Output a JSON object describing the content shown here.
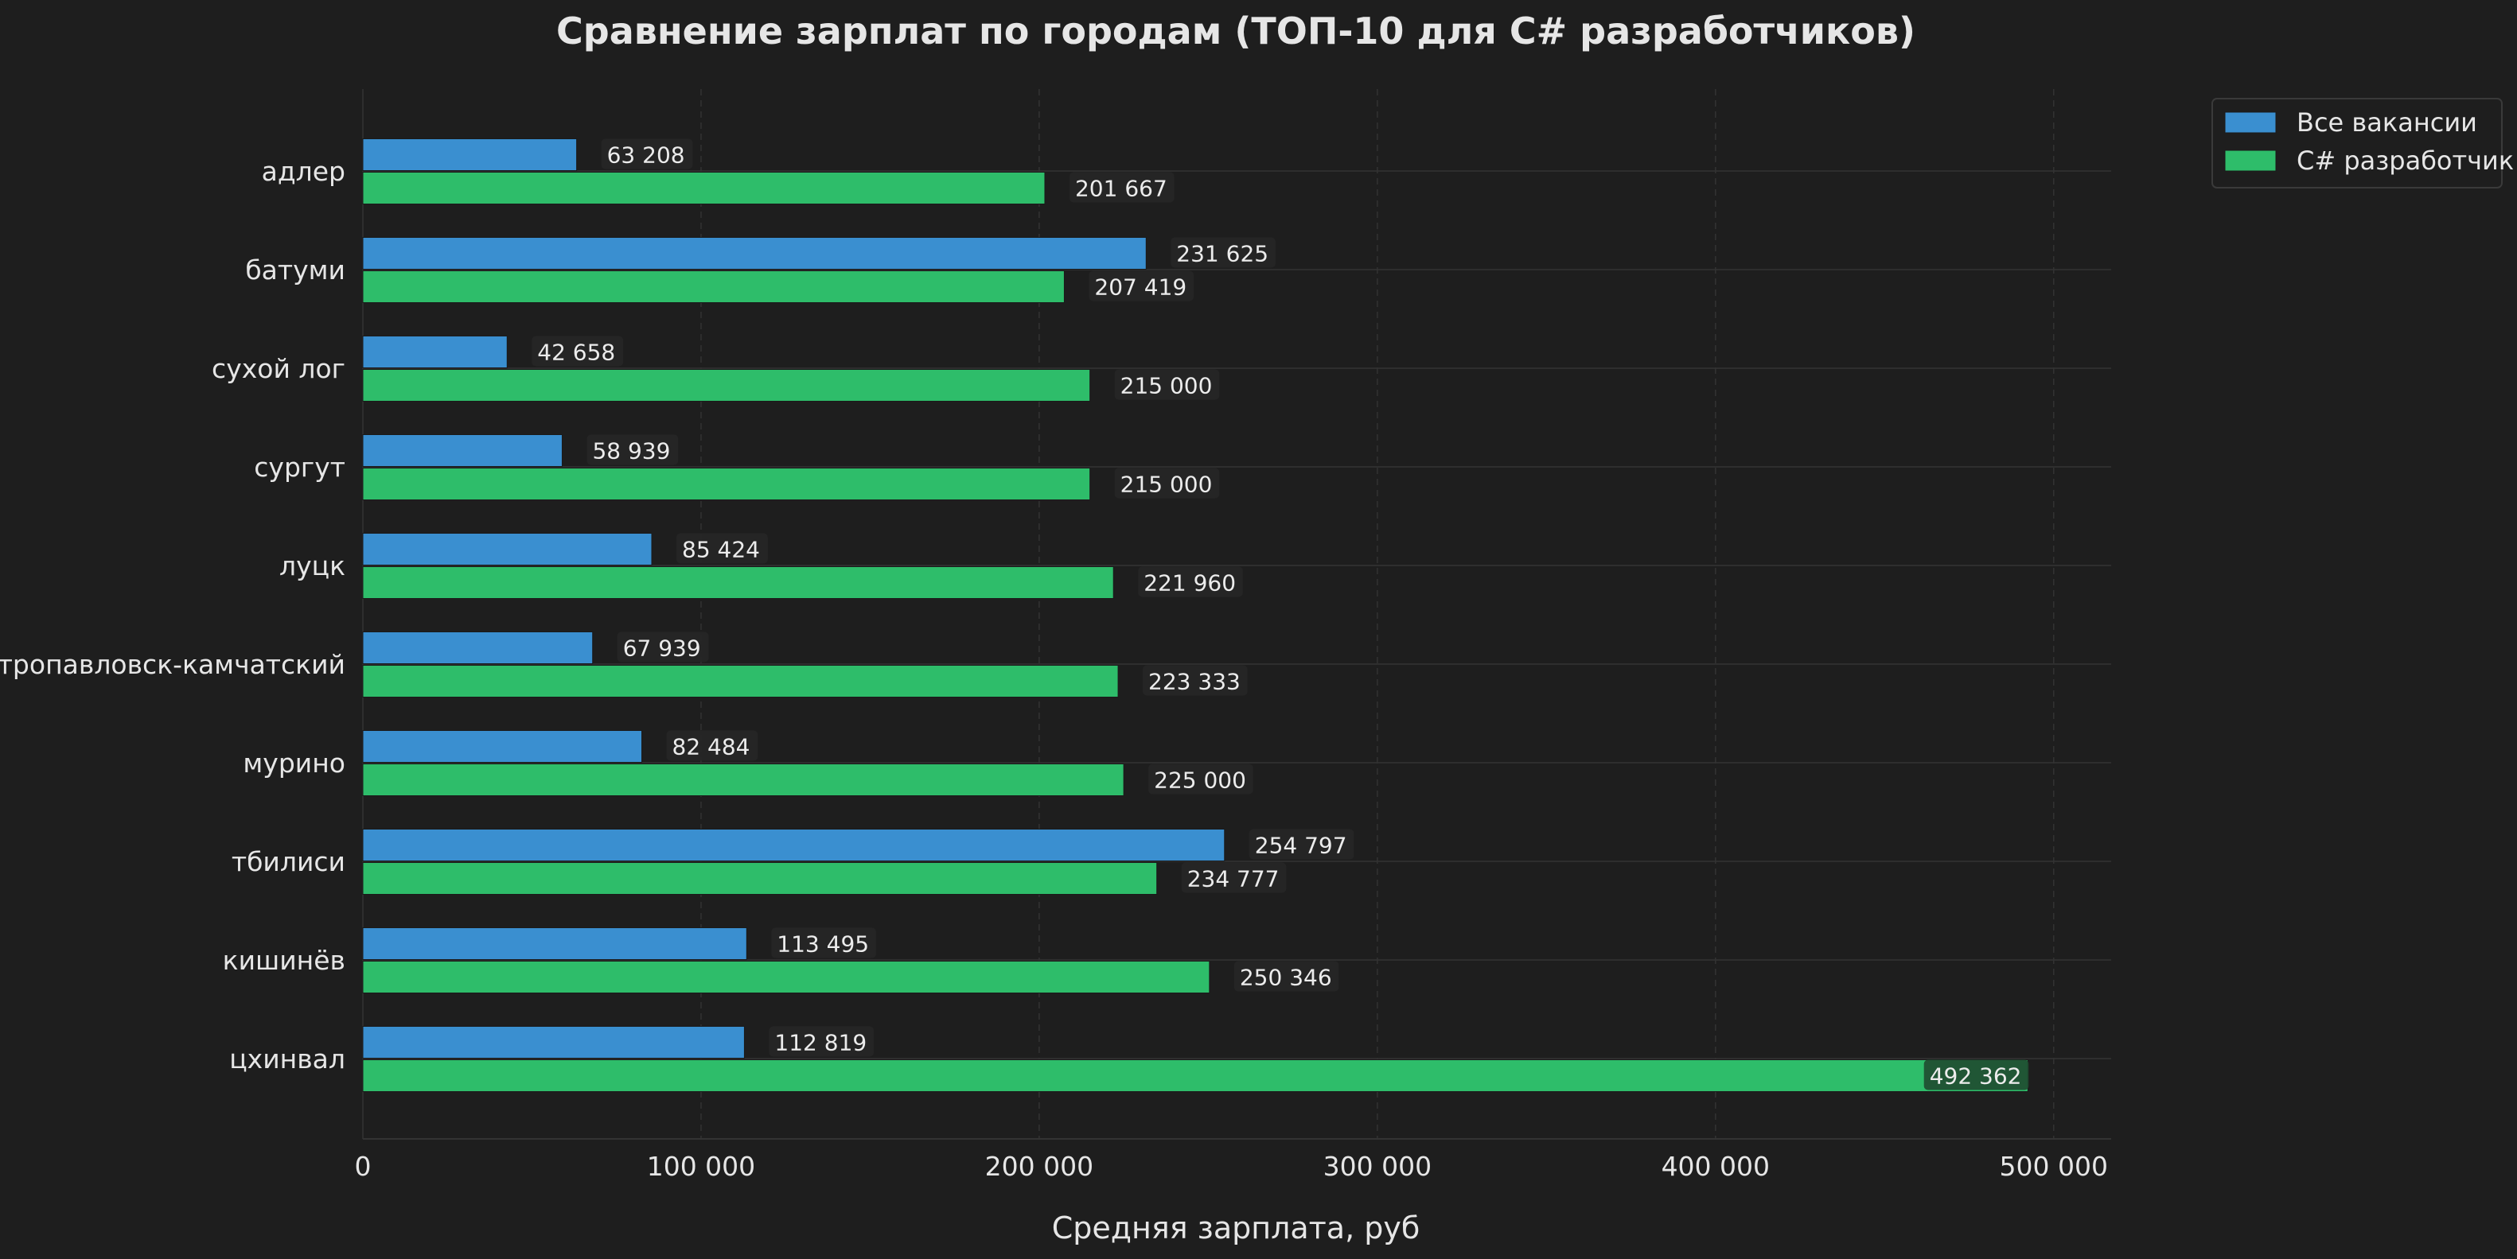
{
  "chart_data": {
    "type": "bar",
    "orientation": "horizontal",
    "title": "Сравнение зарплат по городам (ТОП-10 для C# разработчиков)",
    "xlabel": "Средняя зарплата, руб",
    "ylabel": "",
    "xlim": [
      0,
      517000
    ],
    "xticks": [
      0,
      100000,
      200000,
      300000,
      400000,
      500000
    ],
    "xtick_labels": [
      "0",
      "100 000",
      "200 000",
      "300 000",
      "400 000",
      "500 000"
    ],
    "grid": true,
    "legend_position": "top-right",
    "categories": [
      "адлер",
      "батуми",
      "сухой лог",
      "сургут",
      "луцк",
      "петропавловск-камчатский",
      "мурино",
      "тбилиси",
      "кишинёв",
      "цхинвал"
    ],
    "series": [
      {
        "name": "Все вакансии",
        "color": "#3a8fd0",
        "values": [
          63208,
          231625,
          42658,
          58939,
          85424,
          67939,
          82484,
          254797,
          113495,
          112819
        ],
        "labels": [
          "63 208",
          "231 625",
          "42 658",
          "58 939",
          "85 424",
          "67 939",
          "82 484",
          "254 797",
          "113 495",
          "112 819"
        ]
      },
      {
        "name": "C# разработчик",
        "color": "#2ebd6a",
        "values": [
          201667,
          207419,
          215000,
          215000,
          221960,
          223333,
          225000,
          234777,
          250346,
          492362
        ],
        "labels": [
          "201 667",
          "207 419",
          "215 000",
          "215 000",
          "221 960",
          "223 333",
          "225 000",
          "234 777",
          "250 346",
          "492 362"
        ]
      }
    ]
  },
  "colors": {
    "background": "#1e1e1e",
    "grid": "#333333",
    "text": "#e6e6e6"
  }
}
